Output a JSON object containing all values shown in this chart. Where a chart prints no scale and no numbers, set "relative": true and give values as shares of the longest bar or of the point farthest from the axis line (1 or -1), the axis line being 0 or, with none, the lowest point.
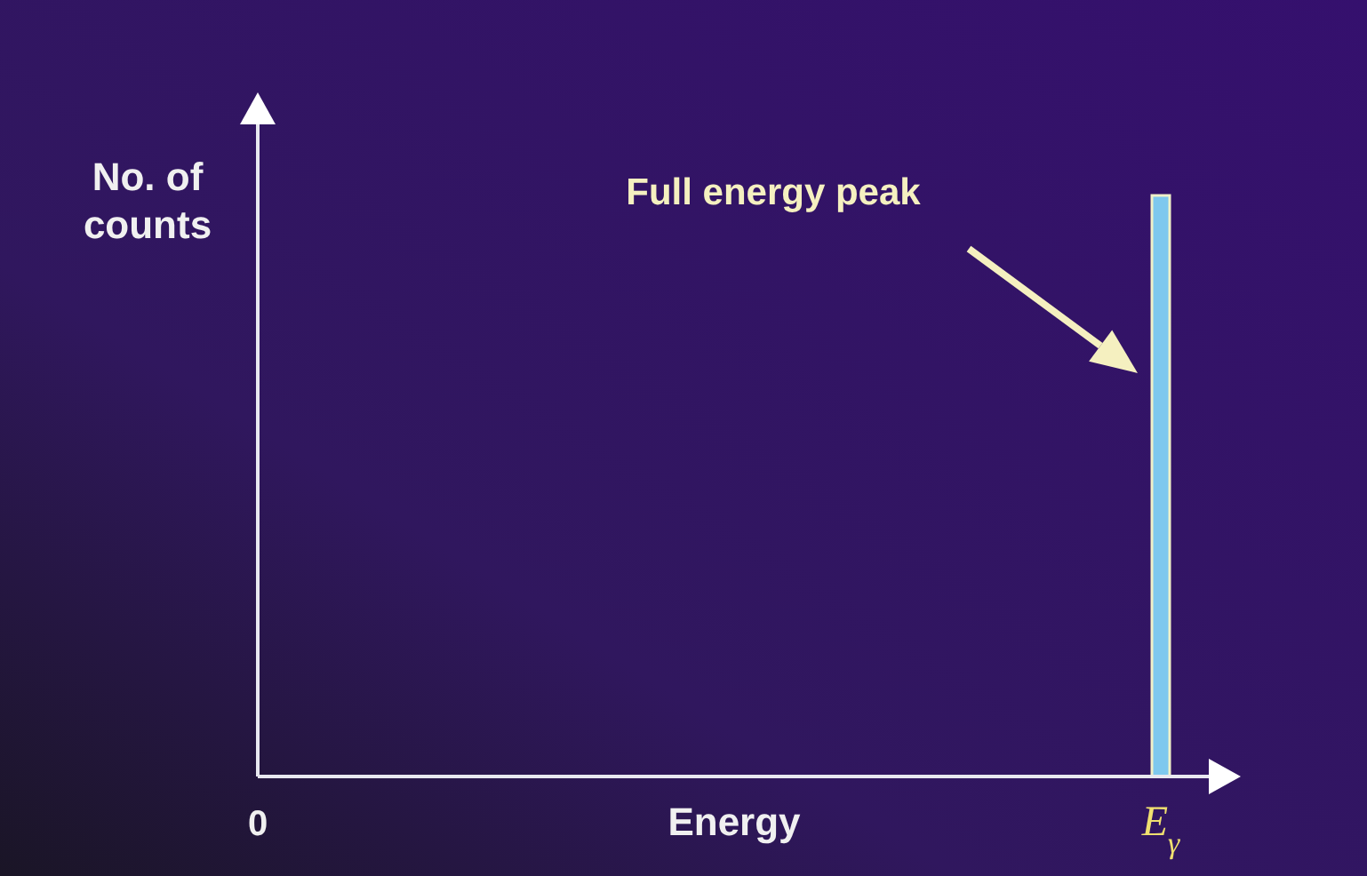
{
  "chart_data": {
    "type": "bar",
    "relative": true,
    "xlabel": "Energy",
    "ylabel": "No. of\ncounts",
    "categories": [
      "0",
      "E$_{γ}$"
    ],
    "values": [
      null,
      1
    ],
    "color": "#7ec8ee",
    "annotations": [
      "Full energy peak"
    ]
  }
}
